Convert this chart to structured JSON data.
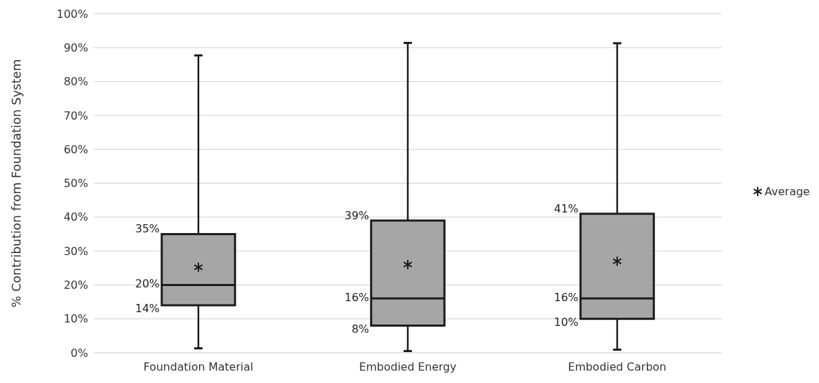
{
  "chart_data": {
    "type": "box",
    "ylabel": "% Contribution from Foundation System",
    "categories": [
      "Foundation Material",
      "Embodied Energy",
      "Embodied Carbon"
    ],
    "series": [
      {
        "name": "Average",
        "color": "#a6a6a6",
        "boxes": [
          {
            "low": 1.3,
            "q1": 14,
            "median": 20,
            "q3": 35,
            "high": 87.7,
            "mean": 25.2
          },
          {
            "low": 0.5,
            "q1": 8,
            "median": 16,
            "q3": 39,
            "high": 91.4,
            "mean": 26
          },
          {
            "low": 0.9,
            "q1": 10,
            "median": 16,
            "q3": 41,
            "high": 91.3,
            "mean": 27
          }
        ],
        "value_labels": [
          [
            "35%",
            "20%",
            "14%"
          ],
          [
            "39%",
            "16%",
            "8%"
          ],
          [
            "41%",
            "16%",
            "10%"
          ]
        ]
      }
    ],
    "ylim": [
      0,
      100
    ],
    "yticks": [
      {
        "value": 0,
        "label": "0%"
      },
      {
        "value": 10,
        "label": "10%"
      },
      {
        "value": 20,
        "label": "20%"
      },
      {
        "value": 30,
        "label": "30%"
      },
      {
        "value": 40,
        "label": "40%"
      },
      {
        "value": 50,
        "label": "50%"
      },
      {
        "value": 60,
        "label": "60%"
      },
      {
        "value": 70,
        "label": "70%"
      },
      {
        "value": 80,
        "label": "80%"
      },
      {
        "value": 90,
        "label": "90%"
      },
      {
        "value": 100,
        "label": "100%"
      }
    ],
    "grid": "y",
    "legend": "right",
    "marker": "star"
  }
}
